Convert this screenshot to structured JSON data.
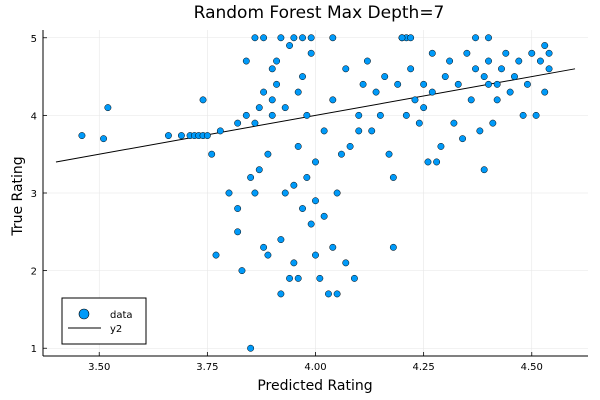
{
  "chart_data": {
    "type": "scatter",
    "title": "Random Forest Max Depth=7",
    "xlabel": "Predicted Rating",
    "ylabel": "True Rating",
    "xlim": [
      3.37,
      4.63
    ],
    "ylim": [
      0.9,
      5.1
    ],
    "xticks": [
      3.5,
      3.75,
      4.0,
      4.25,
      4.5
    ],
    "xtick_labels": [
      "3.50",
      "3.75",
      "4.00",
      "4.25",
      "4.50"
    ],
    "yticks": [
      1,
      2,
      3,
      4,
      5
    ],
    "ytick_labels": [
      "1",
      "2",
      "3",
      "4",
      "5"
    ],
    "grid": true,
    "legend_placement": "bottom-left",
    "series": [
      {
        "name": "data",
        "kind": "scatter",
        "color": "#009af9",
        "points": [
          [
            3.46,
            3.74
          ],
          [
            3.51,
            3.7
          ],
          [
            3.52,
            4.1
          ],
          [
            3.66,
            3.74
          ],
          [
            3.69,
            3.74
          ],
          [
            3.71,
            3.74
          ],
          [
            3.72,
            3.74
          ],
          [
            3.73,
            3.74
          ],
          [
            3.74,
            3.74
          ],
          [
            3.75,
            3.74
          ],
          [
            3.74,
            4.2
          ],
          [
            3.76,
            3.5
          ],
          [
            3.77,
            2.2
          ],
          [
            3.78,
            3.8
          ],
          [
            3.8,
            3.0
          ],
          [
            3.82,
            3.9
          ],
          [
            3.82,
            2.8
          ],
          [
            3.82,
            2.5
          ],
          [
            3.83,
            2.0
          ],
          [
            3.84,
            4.0
          ],
          [
            3.84,
            4.7
          ],
          [
            3.85,
            1.0
          ],
          [
            3.85,
            3.2
          ],
          [
            3.86,
            3.0
          ],
          [
            3.87,
            3.3
          ],
          [
            3.86,
            3.9
          ],
          [
            3.87,
            4.1
          ],
          [
            3.88,
            2.3
          ],
          [
            3.88,
            4.3
          ],
          [
            3.89,
            2.2
          ],
          [
            3.89,
            3.5
          ],
          [
            3.9,
            4.0
          ],
          [
            3.9,
            4.2
          ],
          [
            3.9,
            4.6
          ],
          [
            3.91,
            4.7
          ],
          [
            3.91,
            4.4
          ],
          [
            3.92,
            1.7
          ],
          [
            3.92,
            2.4
          ],
          [
            3.93,
            3.0
          ],
          [
            3.93,
            4.1
          ],
          [
            3.94,
            4.9
          ],
          [
            3.94,
            1.9
          ],
          [
            3.95,
            2.1
          ],
          [
            3.96,
            1.9
          ],
          [
            3.95,
            3.1
          ],
          [
            3.96,
            3.6
          ],
          [
            3.96,
            4.3
          ],
          [
            3.97,
            2.8
          ],
          [
            3.97,
            4.5
          ],
          [
            3.98,
            3.2
          ],
          [
            3.98,
            4.0
          ],
          [
            3.99,
            2.6
          ],
          [
            3.99,
            4.8
          ],
          [
            4.0,
            2.2
          ],
          [
            4.0,
            2.9
          ],
          [
            4.0,
            3.4
          ],
          [
            4.01,
            1.9
          ],
          [
            4.02,
            2.7
          ],
          [
            4.02,
            3.8
          ],
          [
            4.03,
            1.7
          ],
          [
            4.04,
            4.2
          ],
          [
            4.04,
            2.3
          ],
          [
            4.05,
            1.7
          ],
          [
            4.05,
            3.0
          ],
          [
            4.06,
            3.5
          ],
          [
            4.07,
            4.6
          ],
          [
            4.07,
            2.1
          ],
          [
            4.08,
            3.6
          ],
          [
            4.09,
            1.9
          ],
          [
            4.1,
            3.8
          ],
          [
            4.1,
            4.0
          ],
          [
            4.11,
            4.4
          ],
          [
            4.12,
            4.7
          ],
          [
            4.13,
            3.8
          ],
          [
            4.14,
            4.3
          ],
          [
            4.15,
            4.0
          ],
          [
            4.16,
            4.5
          ],
          [
            4.17,
            3.5
          ],
          [
            4.18,
            2.3
          ],
          [
            4.18,
            3.2
          ],
          [
            4.19,
            4.4
          ],
          [
            4.2,
            5.0
          ],
          [
            4.21,
            5.0
          ],
          [
            4.21,
            4.0
          ],
          [
            4.22,
            4.6
          ],
          [
            4.23,
            4.2
          ],
          [
            4.24,
            3.9
          ],
          [
            4.25,
            4.1
          ],
          [
            4.26,
            3.4
          ],
          [
            4.27,
            4.8
          ],
          [
            4.27,
            4.3
          ],
          [
            4.28,
            3.4
          ],
          [
            4.29,
            3.6
          ],
          [
            4.3,
            4.5
          ],
          [
            4.31,
            4.7
          ],
          [
            4.32,
            3.9
          ],
          [
            4.33,
            4.4
          ],
          [
            4.34,
            3.7
          ],
          [
            4.35,
            4.8
          ],
          [
            4.36,
            4.2
          ],
          [
            4.37,
            4.6
          ],
          [
            4.38,
            3.8
          ],
          [
            4.39,
            4.5
          ],
          [
            4.39,
            3.3
          ],
          [
            4.4,
            4.7
          ],
          [
            4.41,
            3.9
          ],
          [
            4.42,
            4.4
          ],
          [
            4.42,
            4.2
          ],
          [
            4.43,
            4.6
          ],
          [
            4.44,
            4.8
          ],
          [
            4.45,
            4.3
          ],
          [
            4.46,
            4.5
          ],
          [
            4.47,
            4.7
          ],
          [
            4.48,
            4.0
          ],
          [
            4.49,
            4.4
          ],
          [
            4.5,
            4.8
          ],
          [
            4.51,
            4.0
          ],
          [
            4.52,
            4.7
          ],
          [
            4.53,
            4.9
          ],
          [
            4.53,
            4.3
          ],
          [
            4.54,
            4.6
          ],
          [
            4.54,
            4.8
          ],
          [
            3.86,
            5.0
          ],
          [
            3.88,
            5.0
          ],
          [
            3.92,
            5.0
          ],
          [
            3.95,
            5.0
          ],
          [
            3.97,
            5.0
          ],
          [
            3.99,
            5.0
          ],
          [
            4.04,
            5.0
          ],
          [
            4.2,
            5.0
          ],
          [
            4.22,
            5.0
          ],
          [
            4.37,
            5.0
          ],
          [
            4.4,
            5.0
          ],
          [
            4.4,
            4.4
          ],
          [
            4.25,
            4.4
          ]
        ]
      },
      {
        "name": "y2",
        "kind": "line",
        "color": "#000000",
        "points": [
          [
            3.4,
            3.4
          ],
          [
            4.6,
            4.6
          ]
        ]
      }
    ]
  }
}
